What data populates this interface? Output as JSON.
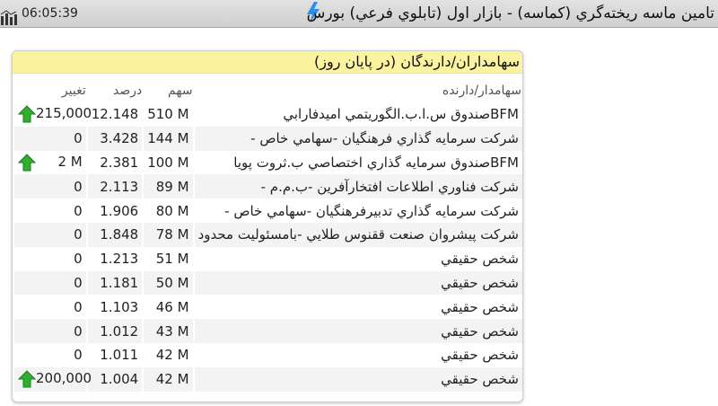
{
  "header": {
    "time": "06:05:39",
    "title": "تامين ماسه ريخته‌گري (كماسه) - بازار اول (تابلوي فرعي) بورس",
    "chart_icon": "bar-chart-icon",
    "status_icon": "lightning-icon"
  },
  "panel": {
    "title": "سهامداران/دارندگان (در پايان روز)",
    "columns": {
      "holder": "سهامدار/دارنده",
      "shares": "سهم",
      "percent": "درصد",
      "change": "تغيير"
    },
    "rows": [
      {
        "holder": "BFMصندوق س.ا.ب.الگوريتمي اميدفارابي",
        "shares": "510 M",
        "percent": "12.148",
        "change": "215,000",
        "up": true
      },
      {
        "holder": "شركت سرمايه گذاري فرهنگيان -سهامي خاص -",
        "shares": "144 M",
        "percent": "3.428",
        "change": "0",
        "up": false
      },
      {
        "holder": "BFMصندوق سرمايه گذاري اختصاصي ب.ثروت پويا",
        "shares": "100 M",
        "percent": "2.381",
        "change": "2 M",
        "up": true
      },
      {
        "holder": "شركت فناوري اطلاعات افتخارآفرين -ب.م.م -",
        "shares": "89 M",
        "percent": "2.113",
        "change": "0",
        "up": false
      },
      {
        "holder": "شركت سرمايه گذاري تدبيرفرهنگيان -سهامي خاص -",
        "shares": "80 M",
        "percent": "1.906",
        "change": "0",
        "up": false
      },
      {
        "holder": "شركت پيشروان صنعت ققنوس طلايي -بامسئوليت محدود",
        "shares": "78 M",
        "percent": "1.848",
        "change": "0",
        "up": false
      },
      {
        "holder": "شخص حقيقي",
        "shares": "51 M",
        "percent": "1.213",
        "change": "0",
        "up": false
      },
      {
        "holder": "شخص حقيقي",
        "shares": "50 M",
        "percent": "1.181",
        "change": "0",
        "up": false
      },
      {
        "holder": "شخص حقيقي",
        "shares": "46 M",
        "percent": "1.103",
        "change": "0",
        "up": false
      },
      {
        "holder": "شخص حقيقي",
        "shares": "43 M",
        "percent": "1.012",
        "change": "0",
        "up": false
      },
      {
        "holder": "شخص حقيقي",
        "shares": "42 M",
        "percent": "1.011",
        "change": "0",
        "up": false
      },
      {
        "holder": "شخص حقيقي",
        "shares": "42 M",
        "percent": "1.004",
        "change": "200,000",
        "up": true
      }
    ]
  },
  "colors": {
    "header_bg": "#d8d8d8",
    "panel_title_bg": "#fbf3a0",
    "up_arrow": "#2fae2f",
    "bolt": "#2b8fe8"
  }
}
